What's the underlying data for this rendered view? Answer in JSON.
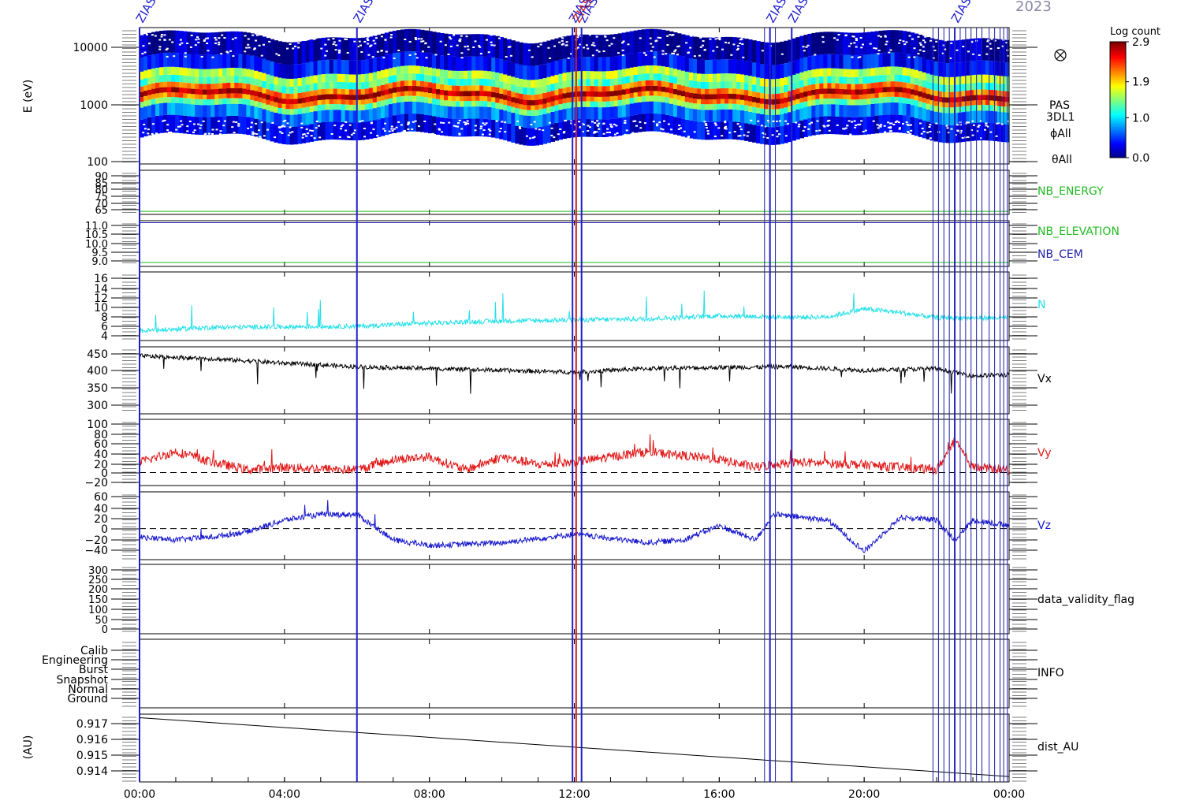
{
  "header": {
    "date_fragment": "2023"
  },
  "markers": [
    {
      "label": "ZIAS",
      "time": 0.0,
      "color": "#2020cc"
    },
    {
      "label": "ZIAS",
      "time": 6.0,
      "color": "#2020cc"
    },
    {
      "label": "ZIAS",
      "time": 11.95,
      "color": "#2020cc"
    },
    {
      "label": "ZIAS",
      "time": 12.05,
      "color": "#cc2020"
    },
    {
      "label": "ZIAS",
      "time": 12.2,
      "color": "#2020cc"
    },
    {
      "label": "ZIAS",
      "time": 17.4,
      "color": "#2020cc"
    },
    {
      "label": "ZIAS",
      "time": 18.0,
      "color": "#2020cc"
    },
    {
      "label": "ZIAS",
      "time": 22.5,
      "color": "#2020cc"
    }
  ],
  "colorbar": {
    "title": "Log count",
    "ticks": [
      "2.9",
      "1.9",
      "1.0",
      "0.0"
    ],
    "range": [
      0.0,
      2.9
    ]
  },
  "chart_data": [
    {
      "type": "heatmap",
      "name": "spectrogram",
      "ylabel": "E (eV)",
      "yscale": "log",
      "ylim": [
        100,
        10000
      ],
      "yticks": [
        "10000",
        "1000",
        "100"
      ],
      "right_labels": [
        "PAS",
        "3DL1",
        "ϕAll",
        "θAll"
      ],
      "bands_eV": [
        {
          "lo": 220,
          "hi": 420,
          "level": 0.3
        },
        {
          "lo": 420,
          "hi": 650,
          "level": 0.7
        },
        {
          "lo": 650,
          "hi": 800,
          "level": 1.4
        },
        {
          "lo": 800,
          "hi": 950,
          "level": 2.2
        },
        {
          "lo": 950,
          "hi": 1150,
          "level": 2.8
        },
        {
          "lo": 1150,
          "hi": 1400,
          "level": 2.2
        },
        {
          "lo": 1400,
          "hi": 1800,
          "level": 1.3
        },
        {
          "lo": 1800,
          "hi": 2400,
          "level": 1.6
        },
        {
          "lo": 2400,
          "hi": 4000,
          "level": 0.4
        },
        {
          "lo": 4000,
          "hi": 9000,
          "level": 0.1
        }
      ]
    },
    {
      "type": "line",
      "name": "NB_ENERGY",
      "label": "NB_ENERGY",
      "color": "#22bb22",
      "ylim": [
        63,
        92
      ],
      "yticks": [
        "90",
        "85",
        "80",
        "75",
        "70",
        "65"
      ],
      "constant": 65
    },
    {
      "type": "line",
      "name": "NB_ELEVATION_CEM",
      "labels": [
        {
          "text": "NB_ELEVATION",
          "color": "#22bb22"
        },
        {
          "text": "NB_CEM",
          "color": "#2020aa"
        }
      ],
      "ylim": [
        8.8,
        11.1
      ],
      "yticks": [
        "11.0",
        "10.5",
        "10.0",
        "9.5",
        "9.0"
      ],
      "series": [
        {
          "name": "NB_ELEVATION",
          "constant": 9.0,
          "color": "#22bb22"
        },
        {
          "name": "NB_CEM",
          "constant": 11.0,
          "color": "#2020aa"
        }
      ]
    },
    {
      "type": "line",
      "name": "N",
      "label": "N",
      "color": "#22e0e8",
      "ylim": [
        3.5,
        16.5
      ],
      "yticks": [
        "16",
        "14",
        "12",
        "10",
        "8",
        "6",
        "4"
      ],
      "x": [
        0,
        2,
        4,
        6,
        8,
        10,
        12,
        14,
        16,
        18,
        19,
        20,
        21,
        22,
        24
      ],
      "y": [
        5.3,
        6.0,
        6.1,
        6.2,
        6.8,
        7.2,
        7.4,
        7.6,
        8.2,
        7.9,
        8.0,
        9.5,
        8.8,
        7.8,
        7.8
      ]
    },
    {
      "type": "line",
      "name": "Vx",
      "label": "Vx",
      "color": "#000000",
      "ylim": [
        280,
        465
      ],
      "yticks": [
        "450",
        "400",
        "350",
        "300"
      ],
      "x": [
        0,
        2,
        4,
        6,
        8,
        10,
        12,
        14,
        16,
        18,
        20,
        22,
        23,
        24
      ],
      "y": [
        440,
        432,
        420,
        410,
        405,
        400,
        395,
        405,
        408,
        410,
        400,
        405,
        385,
        388
      ]
    },
    {
      "type": "line",
      "name": "Vy",
      "label": "Vy",
      "color": "#e01818",
      "ylim": [
        -25,
        102
      ],
      "yticks": [
        "100",
        "80",
        "60",
        "40",
        "20",
        "0",
        "−20"
      ],
      "zero_line": true,
      "x": [
        0,
        1,
        2,
        3,
        4,
        6,
        7,
        8,
        9,
        10,
        11,
        12,
        14,
        16,
        17,
        18,
        20,
        22,
        22.5,
        23,
        24
      ],
      "y": [
        20,
        40,
        20,
        5,
        10,
        5,
        25,
        30,
        5,
        30,
        15,
        20,
        40,
        25,
        10,
        20,
        15,
        5,
        60,
        10,
        5
      ]
    },
    {
      "type": "line",
      "name": "Vz",
      "label": "Vz",
      "color": "#1818cc",
      "ylim": [
        -55,
        65
      ],
      "yticks": [
        "60",
        "40",
        "20",
        "0",
        "−20",
        "−40"
      ],
      "zero_line": true,
      "x": [
        0,
        1,
        2,
        3,
        4,
        5,
        6,
        7,
        8,
        10,
        12,
        14,
        15,
        16,
        17,
        17.5,
        19,
        20,
        21,
        22,
        22.5,
        23,
        24
      ],
      "y": [
        -15,
        -20,
        -15,
        -5,
        15,
        25,
        25,
        -20,
        -30,
        -25,
        -10,
        -25,
        -20,
        5,
        -20,
        25,
        15,
        -40,
        20,
        15,
        -20,
        15,
        5
      ]
    },
    {
      "type": "line",
      "name": "data_validity_flag",
      "label": "data_validity_flag",
      "ylim": [
        -10,
        305
      ],
      "yticks": [
        "300",
        "250",
        "200",
        "150",
        "100",
        "50",
        "0"
      ]
    },
    {
      "type": "table",
      "name": "INFO",
      "label": "INFO",
      "categories": [
        "Calib",
        "Engineering",
        "Burst",
        "Snapshot",
        "Normal",
        "Ground"
      ]
    },
    {
      "type": "line",
      "name": "dist_AU",
      "label": "dist_AU",
      "color": "#000000",
      "ylabel": "(AU)",
      "ylim": [
        0.9137,
        0.9175
      ],
      "yticks": [
        "0.917",
        "0.916",
        "0.915",
        "0.914"
      ],
      "x": [
        0,
        24
      ],
      "y": [
        0.9173,
        0.914
      ]
    }
  ],
  "xaxis": {
    "ticks": [
      {
        "t": 0,
        "label": "00:00"
      },
      {
        "t": 4,
        "label": "04:00"
      },
      {
        "t": 8,
        "label": "08:00"
      },
      {
        "t": 12,
        "label": "12:00"
      },
      {
        "t": 16,
        "label": "16:00"
      },
      {
        "t": 20,
        "label": "20:00"
      },
      {
        "t": 24,
        "label": "00:00"
      }
    ],
    "range": [
      0,
      24
    ]
  }
}
